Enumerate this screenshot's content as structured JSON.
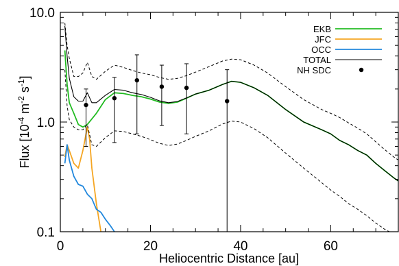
{
  "chart_data": {
    "type": "line",
    "xlabel": "Heliocentric Distance [au]",
    "ylabel": "Flux [10",
    "ylabel_exp": "-4",
    "ylabel_unit_m": " m",
    "ylabel_unit_m_exp": "-2",
    "ylabel_unit_s": " s",
    "ylabel_unit_s_exp": "-1",
    "ylabel_end": "]",
    "xlim": [
      0,
      75
    ],
    "ylim": [
      0.1,
      10
    ],
    "yscale": "log",
    "grid": false,
    "legend_position": "top-right",
    "x_ticks": [
      {
        "value": 0,
        "label": "0"
      },
      {
        "value": 20,
        "label": "20"
      },
      {
        "value": 40,
        "label": "40"
      },
      {
        "value": 60,
        "label": "60"
      }
    ],
    "y_ticks": [
      {
        "value": 0.1,
        "label": "0.1"
      },
      {
        "value": 1.0,
        "label": "1.0"
      },
      {
        "value": 10.0,
        "label": "10.0"
      }
    ],
    "series": [
      {
        "name": "EKB",
        "color": "#22bb22",
        "style": "solid",
        "points": [
          [
            1,
            4.5
          ],
          [
            1.5,
            2.2
          ],
          [
            2,
            1.5
          ],
          [
            3,
            1.2
          ],
          [
            4,
            0.95
          ],
          [
            5,
            0.9
          ],
          [
            6,
            0.95
          ],
          [
            8,
            1.2
          ],
          [
            10,
            1.6
          ],
          [
            12,
            1.85
          ],
          [
            14,
            1.82
          ],
          [
            16,
            1.75
          ],
          [
            18,
            1.7
          ],
          [
            20,
            1.62
          ],
          [
            22,
            1.52
          ],
          [
            24,
            1.48
          ],
          [
            26,
            1.52
          ],
          [
            28,
            1.65
          ],
          [
            30,
            1.8
          ],
          [
            33,
            1.95
          ],
          [
            36,
            2.2
          ],
          [
            38,
            2.35
          ],
          [
            40,
            2.3
          ],
          [
            43,
            2.05
          ],
          [
            46,
            1.75
          ],
          [
            50,
            1.3
          ],
          [
            54,
            1.0
          ],
          [
            58,
            0.85
          ],
          [
            60,
            0.78
          ],
          [
            62,
            0.68
          ],
          [
            64,
            0.62
          ],
          [
            66,
            0.55
          ],
          [
            68,
            0.5
          ],
          [
            70,
            0.42
          ],
          [
            72,
            0.36
          ],
          [
            74,
            0.31
          ],
          [
            75,
            0.29
          ]
        ]
      },
      {
        "name": "JFC",
        "color": "#f5a623",
        "style": "solid",
        "points": [
          [
            1,
            0.48
          ],
          [
            1.5,
            0.62
          ],
          [
            2,
            0.55
          ],
          [
            3,
            0.42
          ],
          [
            4,
            0.38
          ],
          [
            5,
            0.55
          ],
          [
            6,
            0.9
          ],
          [
            6.5,
            0.7
          ],
          [
            7,
            0.38
          ],
          [
            8,
            0.18
          ],
          [
            9,
            0.1
          ]
        ]
      },
      {
        "name": "OCC",
        "color": "#2288dd",
        "style": "solid",
        "points": [
          [
            1,
            0.42
          ],
          [
            1.5,
            0.62
          ],
          [
            2,
            0.45
          ],
          [
            3,
            0.32
          ],
          [
            4,
            0.27
          ],
          [
            5,
            0.26
          ],
          [
            6,
            0.22
          ],
          [
            7,
            0.2
          ],
          [
            8,
            0.16
          ],
          [
            9,
            0.15
          ],
          [
            10,
            0.13
          ],
          [
            11,
            0.115
          ],
          [
            12,
            0.1
          ]
        ]
      },
      {
        "name": "TOTAL",
        "color": "#000000",
        "style": "solid",
        "points": [
          [
            1,
            7.5
          ],
          [
            1.5,
            4
          ],
          [
            2,
            2.5
          ],
          [
            3,
            1.7
          ],
          [
            4,
            1.55
          ],
          [
            5,
            1.55
          ],
          [
            6,
            1.85
          ],
          [
            7,
            1.5
          ],
          [
            8,
            1.5
          ],
          [
            10,
            1.75
          ],
          [
            12,
            1.98
          ],
          [
            14,
            1.95
          ],
          [
            16,
            1.85
          ],
          [
            18,
            1.78
          ],
          [
            20,
            1.68
          ],
          [
            22,
            1.56
          ],
          [
            24,
            1.5
          ],
          [
            26,
            1.54
          ],
          [
            28,
            1.66
          ],
          [
            30,
            1.8
          ],
          [
            33,
            1.95
          ],
          [
            36,
            2.2
          ],
          [
            38,
            2.35
          ],
          [
            40,
            2.3
          ],
          [
            43,
            2.05
          ],
          [
            46,
            1.75
          ],
          [
            50,
            1.3
          ],
          [
            54,
            1.0
          ],
          [
            58,
            0.85
          ],
          [
            60,
            0.78
          ],
          [
            62,
            0.68
          ],
          [
            64,
            0.62
          ],
          [
            66,
            0.55
          ],
          [
            68,
            0.5
          ],
          [
            70,
            0.42
          ],
          [
            72,
            0.36
          ],
          [
            74,
            0.31
          ],
          [
            75,
            0.29
          ]
        ]
      },
      {
        "name": "",
        "color": "#000000",
        "style": "dashed",
        "points": [
          [
            1,
            8
          ],
          [
            1.5,
            5
          ],
          [
            2,
            3.8
          ],
          [
            3,
            2.6
          ],
          [
            4,
            2.6
          ],
          [
            5,
            2.8
          ],
          [
            6,
            3.5
          ],
          [
            7,
            2.6
          ],
          [
            8,
            2.45
          ],
          [
            10,
            2.9
          ],
          [
            12,
            3.3
          ],
          [
            14,
            3.15
          ],
          [
            16,
            2.95
          ],
          [
            18,
            2.8
          ],
          [
            20,
            2.7
          ],
          [
            22,
            2.55
          ],
          [
            24,
            2.45
          ],
          [
            26,
            2.5
          ],
          [
            28,
            2.65
          ],
          [
            30,
            2.85
          ],
          [
            33,
            3.2
          ],
          [
            36,
            3.6
          ],
          [
            38,
            3.75
          ],
          [
            40,
            3.7
          ],
          [
            43,
            3.3
          ],
          [
            46,
            2.8
          ],
          [
            50,
            2.1
          ],
          [
            54,
            1.6
          ],
          [
            58,
            1.3
          ],
          [
            60,
            1.2
          ],
          [
            62,
            1.1
          ],
          [
            64,
            0.98
          ],
          [
            66,
            0.88
          ],
          [
            68,
            0.78
          ],
          [
            70,
            0.66
          ],
          [
            72,
            0.56
          ],
          [
            74,
            0.48
          ],
          [
            75,
            0.45
          ]
        ]
      },
      {
        "name": "",
        "color": "#000000",
        "style": "dashed",
        "points": [
          [
            1,
            3
          ],
          [
            1.5,
            1.4
          ],
          [
            2,
            1.05
          ],
          [
            3,
            0.9
          ],
          [
            4,
            0.85
          ],
          [
            5,
            0.85
          ],
          [
            6,
            0.95
          ],
          [
            7,
            0.62
          ],
          [
            8,
            0.6
          ],
          [
            10,
            0.72
          ],
          [
            12,
            0.83
          ],
          [
            14,
            0.82
          ],
          [
            16,
            0.78
          ],
          [
            18,
            0.74
          ],
          [
            20,
            0.69
          ],
          [
            22,
            0.64
          ],
          [
            24,
            0.61
          ],
          [
            26,
            0.63
          ],
          [
            28,
            0.68
          ],
          [
            30,
            0.74
          ],
          [
            33,
            0.83
          ],
          [
            36,
            0.96
          ],
          [
            38,
            1.02
          ],
          [
            40,
            1.0
          ],
          [
            43,
            0.87
          ],
          [
            46,
            0.72
          ],
          [
            50,
            0.52
          ],
          [
            54,
            0.38
          ],
          [
            58,
            0.28
          ],
          [
            60,
            0.24
          ],
          [
            62,
            0.21
          ],
          [
            64,
            0.18
          ],
          [
            66,
            0.16
          ],
          [
            68,
            0.14
          ],
          [
            70,
            0.12
          ],
          [
            72,
            0.105
          ],
          [
            73,
            0.1
          ]
        ]
      }
    ],
    "markers": {
      "name": "NH SDC",
      "color": "#000000",
      "points": [
        {
          "x": 5.7,
          "y": 1.43,
          "y_low": 0.6,
          "y_high": 2.0
        },
        {
          "x": 12.0,
          "y": 1.65,
          "y_low": 0.65,
          "y_high": 2.55
        },
        {
          "x": 17.0,
          "y": 2.4,
          "y_low": 0.78,
          "y_high": 4.1
        },
        {
          "x": 22.5,
          "y": 2.1,
          "y_low": 0.93,
          "y_high": 3.3
        },
        {
          "x": 28.0,
          "y": 2.05,
          "y_low": 0.78,
          "y_high": 3.4
        },
        {
          "x": 37.0,
          "y": 1.55,
          "y_low": 0.1,
          "y_high": 3.0
        }
      ]
    },
    "legend": [
      {
        "label": "EKB",
        "color": "#22bb22",
        "kind": "line"
      },
      {
        "label": "JFC",
        "color": "#f5a623",
        "kind": "line"
      },
      {
        "label": "OCC",
        "color": "#2288dd",
        "kind": "line"
      },
      {
        "label": "TOTAL",
        "color": "#000000",
        "kind": "line"
      },
      {
        "label": "NH SDC",
        "color": "#000000",
        "kind": "dot"
      }
    ]
  }
}
